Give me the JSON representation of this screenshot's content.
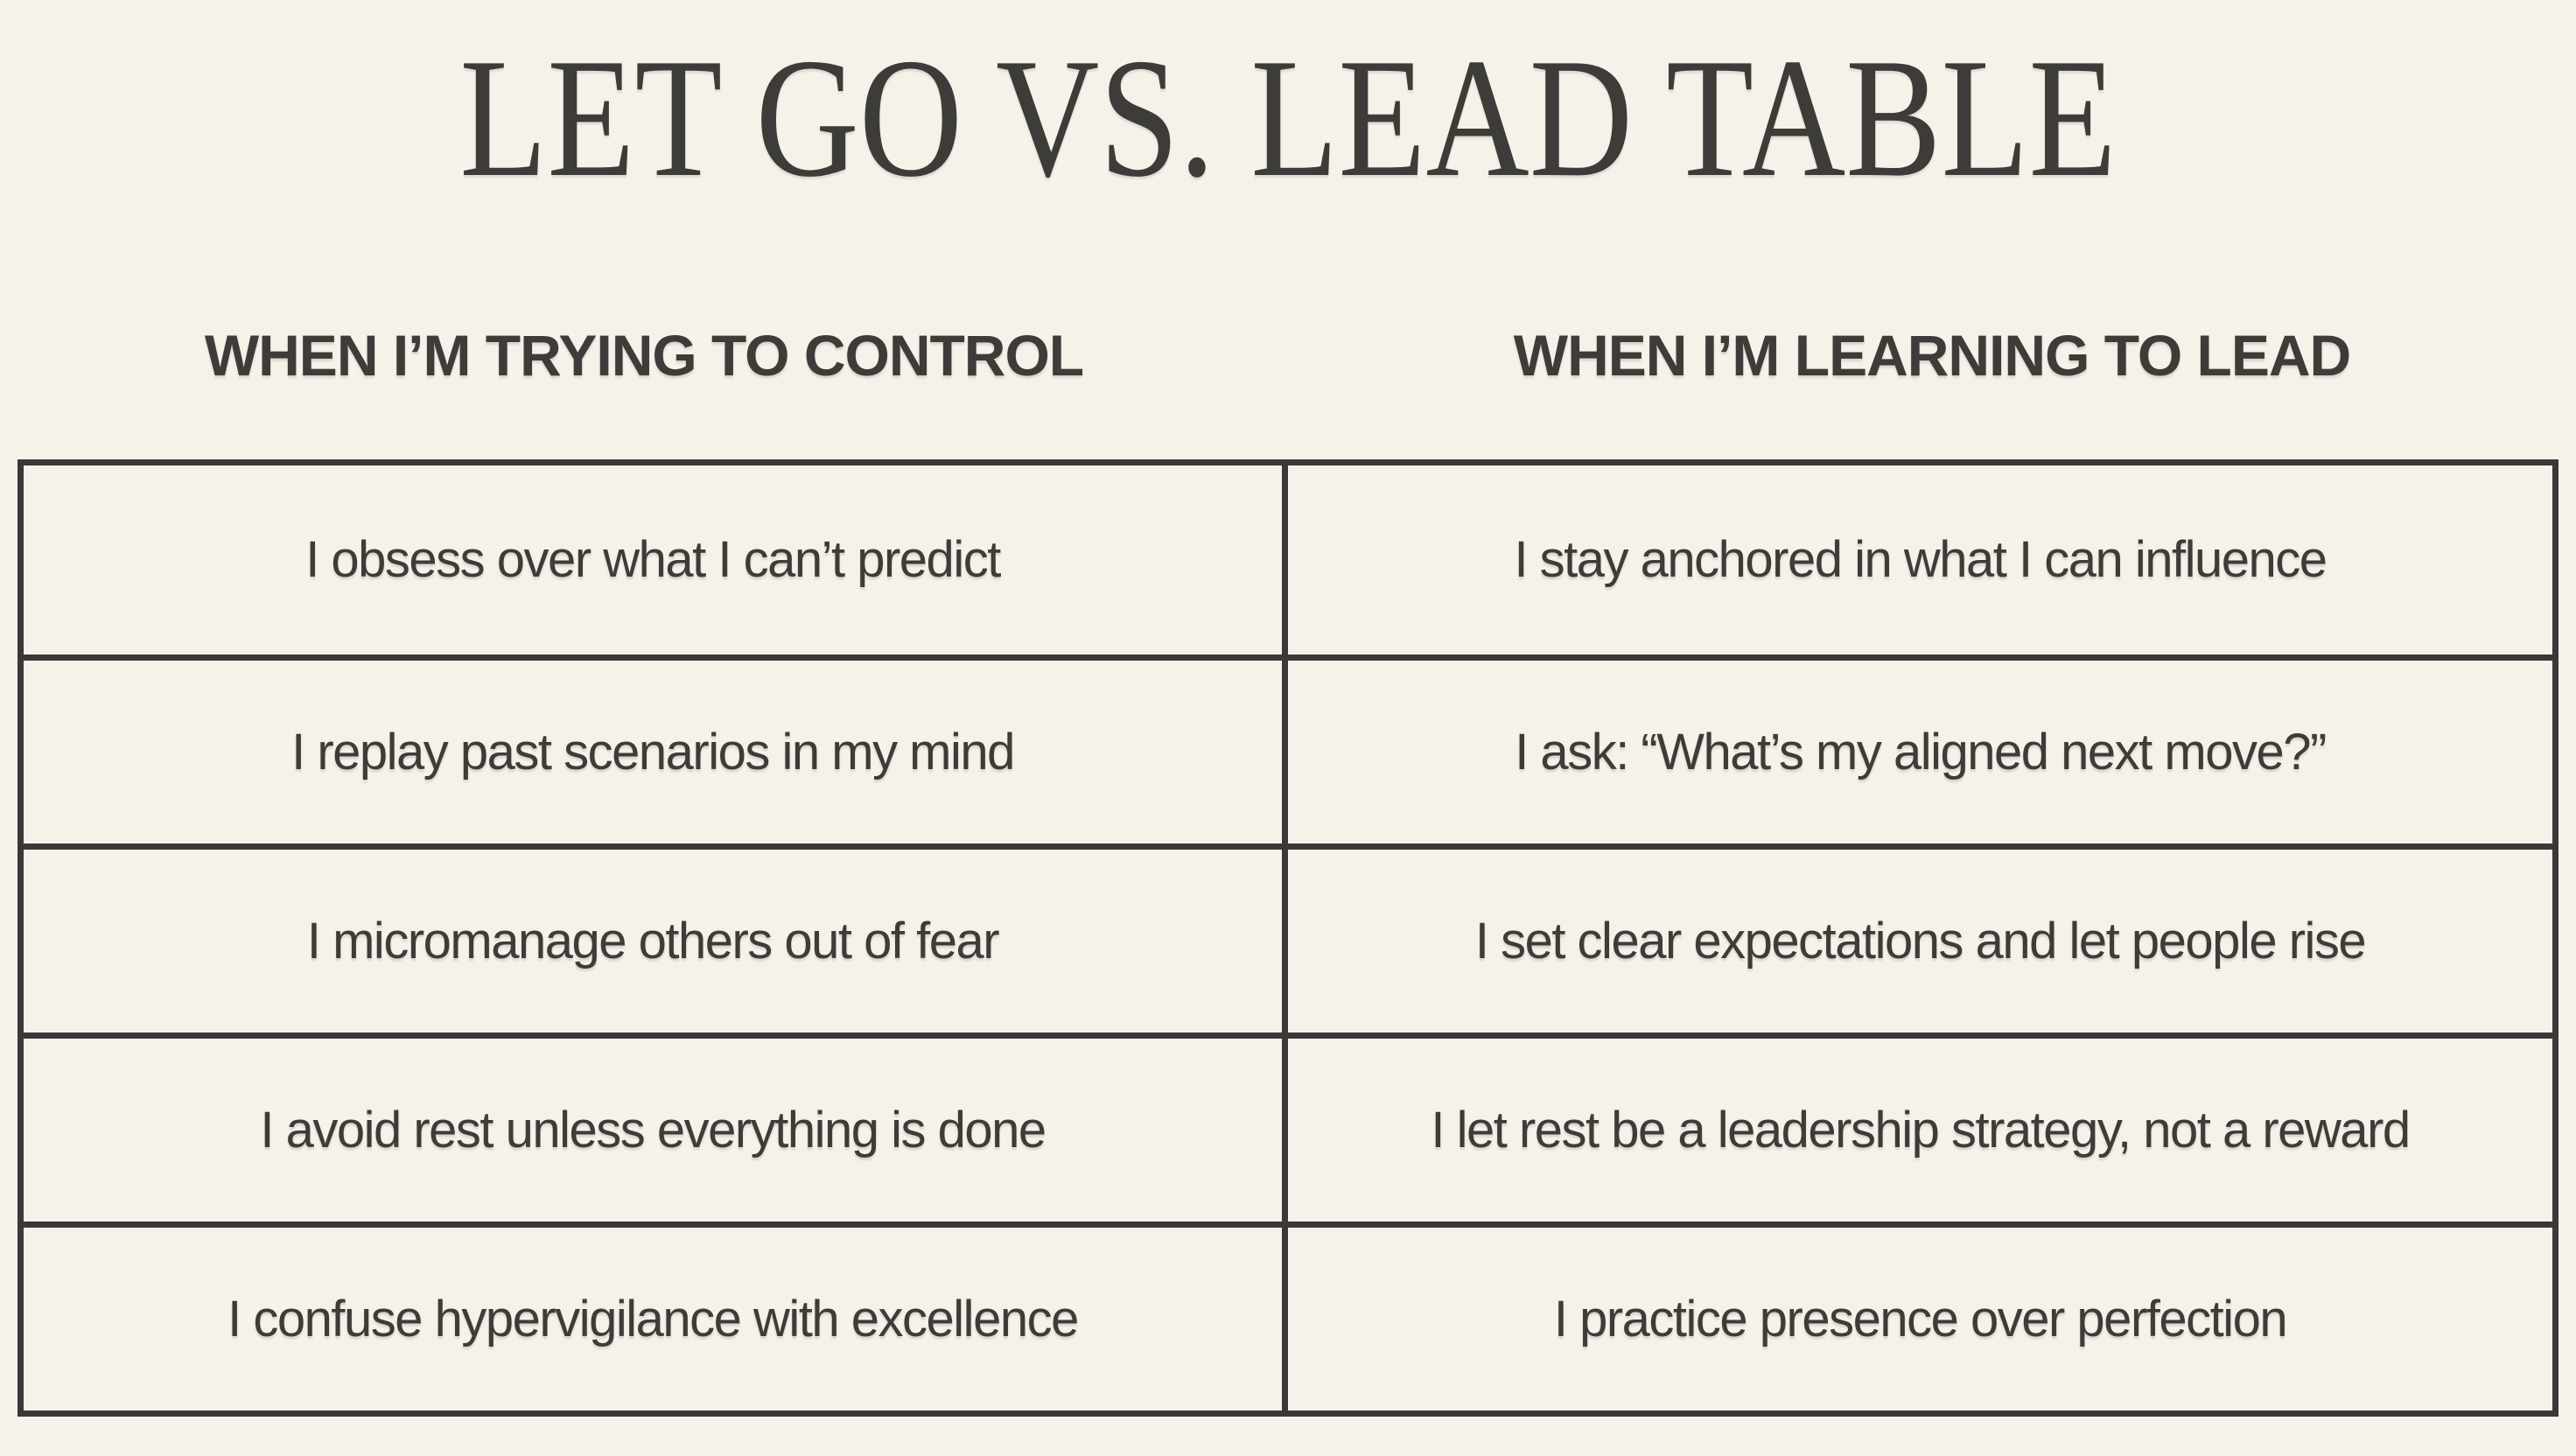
{
  "theme": {
    "background_color": "#f5f2ea",
    "ink_color": "#3e3c39",
    "border_color": "#3a3937"
  },
  "page": {
    "title": "LET GO VS. LEAD TABLE"
  },
  "table": {
    "columns": [
      {
        "header": "WHEN I’M TRYING TO CONTROL"
      },
      {
        "header": "WHEN I’M LEARNING TO LEAD"
      }
    ],
    "rows": [
      {
        "control": "I obsess over what I can’t predict",
        "lead": "I stay anchored in what I can influence"
      },
      {
        "control": "I replay past scenarios in my mind",
        "lead": "I ask: “What’s my aligned next move?”"
      },
      {
        "control": "I micromanage others out of fear",
        "lead": "I set clear expectations and let people rise"
      },
      {
        "control": "I avoid rest unless everything is done",
        "lead": "I let rest be a leadership strategy, not a reward"
      },
      {
        "control": "I confuse hypervigilance with excellence",
        "lead": "I practice presence over perfection"
      }
    ]
  }
}
